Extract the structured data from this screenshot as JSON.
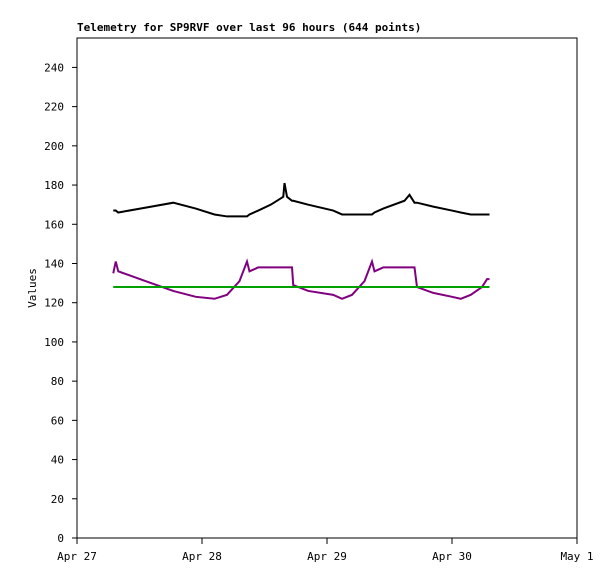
{
  "chart_data": {
    "type": "line",
    "title": "Telemetry for SP9RVF over last 96 hours (644 points)",
    "y_label": "Values",
    "x": [
      0.29,
      0.31,
      0.33,
      0.55,
      0.77,
      0.95,
      1.1,
      1.2,
      1.3,
      1.36,
      1.38,
      1.45,
      1.55,
      1.65,
      1.66,
      1.68,
      1.72,
      1.73,
      1.85,
      2.05,
      2.12,
      2.2,
      2.3,
      2.36,
      2.38,
      2.45,
      2.62,
      2.66,
      2.7,
      2.72,
      2.85,
      3.0,
      3.07,
      3.15,
      3.24,
      3.28,
      3.3
    ],
    "series": [
      {
        "color": "#000000",
        "values": [
          167,
          167,
          166,
          168.5,
          171,
          168,
          165,
          164,
          164,
          164,
          165,
          167,
          170,
          174,
          181,
          174,
          172,
          172,
          170,
          167,
          165,
          165,
          165,
          165,
          166,
          168,
          172,
          175,
          171,
          171,
          169,
          167,
          166,
          165,
          165,
          165,
          165
        ]
      },
      {
        "color": "#800080",
        "values": [
          135,
          141,
          136,
          131,
          126,
          123,
          122,
          124,
          131,
          141,
          136,
          138,
          138,
          138,
          138,
          138,
          138,
          129,
          126,
          124,
          122,
          124,
          131,
          141,
          136,
          138,
          138,
          138,
          138,
          128,
          125,
          123,
          122,
          124,
          128,
          132,
          132
        ]
      },
      {
        "color": "#00a000",
        "values": [
          128,
          128,
          128,
          128,
          128,
          128,
          128,
          128,
          128,
          128,
          128,
          128,
          128,
          128,
          128,
          128,
          128,
          128,
          128,
          128,
          128,
          128,
          128,
          128,
          128,
          128,
          128,
          128,
          128,
          128,
          128,
          128,
          128,
          128,
          128,
          128,
          128
        ]
      }
    ],
    "xlim": [
      0,
      4
    ],
    "xticks": [
      {
        "value": 0,
        "label": "Apr 27"
      },
      {
        "value": 1,
        "label": "Apr 28"
      },
      {
        "value": 2,
        "label": "Apr 29"
      },
      {
        "value": 3,
        "label": "Apr 30"
      },
      {
        "value": 4,
        "label": "May 1"
      }
    ],
    "ylim": [
      0,
      255
    ],
    "yticks": [
      0,
      20,
      40,
      60,
      80,
      100,
      120,
      140,
      160,
      180,
      200,
      220,
      240
    ],
    "grid": false
  }
}
